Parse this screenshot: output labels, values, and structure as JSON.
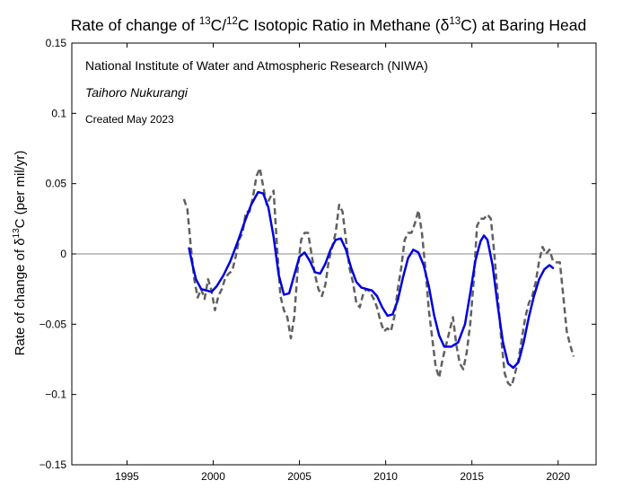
{
  "chart_data": {
    "type": "line",
    "title": {
      "prefix": "Rate of change of ",
      "sup1": "13",
      "mid1": "C/",
      "sup2": "12",
      "mid2": "C Isotopic Ratio in Methane (δ",
      "sup3": "13",
      "suffix": "C) at Baring Head"
    },
    "ylabel": {
      "prefix": "Rate of change of δ",
      "sup": "13",
      "suffix": "C (per mil/yr)"
    },
    "xlabel": "",
    "xlim": [
      1991.8,
      2022.2
    ],
    "ylim": [
      -0.15,
      0.15
    ],
    "x_ticks": [
      1995,
      2000,
      2005,
      2010,
      2015,
      2020
    ],
    "x_tick_labels": [
      "1995",
      "2000",
      "2005",
      "2010",
      "2015",
      "2020"
    ],
    "y_ticks": [
      -0.15,
      -0.1,
      -0.05,
      0,
      0.05,
      0.1,
      0.15
    ],
    "y_tick_labels": [
      "−0.15",
      "−0.1",
      "−0.05",
      "0",
      "0.05",
      "0.1",
      "0.15"
    ],
    "grid": false,
    "zero_line": true,
    "annotations": [
      {
        "text": "National Institute of Water and Atmospheric Research (NIWA)",
        "style": "normal"
      },
      {
        "text": "Taihoro Nukurangi",
        "style": "italic"
      },
      {
        "text": "Created May 2023",
        "style": "small"
      }
    ],
    "series": [
      {
        "style": "dashed",
        "color": "#606060",
        "points": [
          [
            1998.3,
            0.039
          ],
          [
            1998.5,
            0.032
          ],
          [
            1998.7,
            0.005
          ],
          [
            1998.9,
            -0.018
          ],
          [
            1999.1,
            -0.031
          ],
          [
            1999.3,
            -0.025
          ],
          [
            1999.5,
            -0.032
          ],
          [
            1999.7,
            -0.018
          ],
          [
            1999.9,
            -0.026
          ],
          [
            2000.1,
            -0.04
          ],
          [
            2000.3,
            -0.03
          ],
          [
            2000.5,
            -0.025
          ],
          [
            2000.7,
            -0.017
          ],
          [
            2000.9,
            -0.014
          ],
          [
            2001.1,
            -0.012
          ],
          [
            2001.3,
            -0.002
          ],
          [
            2001.5,
            0.01
          ],
          [
            2001.7,
            0.015
          ],
          [
            2001.9,
            0.03
          ],
          [
            2002.1,
            0.03
          ],
          [
            2002.3,
            0.04
          ],
          [
            2002.5,
            0.055
          ],
          [
            2002.7,
            0.061
          ],
          [
            2002.9,
            0.048
          ],
          [
            2003.1,
            0.035
          ],
          [
            2003.3,
            0.04
          ],
          [
            2003.5,
            0.045
          ],
          [
            2003.7,
            0.005
          ],
          [
            2003.9,
            -0.03
          ],
          [
            2004.1,
            -0.04
          ],
          [
            2004.3,
            -0.045
          ],
          [
            2004.5,
            -0.06
          ],
          [
            2004.7,
            -0.045
          ],
          [
            2004.9,
            -0.01
          ],
          [
            2005.1,
            0.01
          ],
          [
            2005.3,
            0.015
          ],
          [
            2005.5,
            0.015
          ],
          [
            2005.7,
            0.0
          ],
          [
            2005.9,
            -0.015
          ],
          [
            2006.1,
            -0.025
          ],
          [
            2006.3,
            -0.03
          ],
          [
            2006.5,
            -0.022
          ],
          [
            2006.7,
            -0.005
          ],
          [
            2006.9,
            0.005
          ],
          [
            2007.1,
            0.015
          ],
          [
            2007.3,
            0.035
          ],
          [
            2007.5,
            0.03
          ],
          [
            2007.7,
            0.01
          ],
          [
            2007.9,
            -0.01
          ],
          [
            2008.1,
            -0.02
          ],
          [
            2008.3,
            -0.035
          ],
          [
            2008.5,
            -0.038
          ],
          [
            2008.7,
            -0.028
          ],
          [
            2008.9,
            -0.025
          ],
          [
            2009.1,
            -0.027
          ],
          [
            2009.3,
            -0.032
          ],
          [
            2009.5,
            -0.038
          ],
          [
            2009.7,
            -0.048
          ],
          [
            2009.9,
            -0.055
          ],
          [
            2010.1,
            -0.053
          ],
          [
            2010.3,
            -0.055
          ],
          [
            2010.5,
            -0.045
          ],
          [
            2010.7,
            -0.025
          ],
          [
            2010.9,
            -0.01
          ],
          [
            2011.1,
            0.01
          ],
          [
            2011.3,
            0.015
          ],
          [
            2011.5,
            0.015
          ],
          [
            2011.7,
            0.022
          ],
          [
            2011.9,
            0.031
          ],
          [
            2012.1,
            0.015
          ],
          [
            2012.3,
            -0.01
          ],
          [
            2012.5,
            -0.04
          ],
          [
            2012.7,
            -0.06
          ],
          [
            2012.9,
            -0.08
          ],
          [
            2013.1,
            -0.088
          ],
          [
            2013.3,
            -0.075
          ],
          [
            2013.5,
            -0.065
          ],
          [
            2013.7,
            -0.055
          ],
          [
            2013.9,
            -0.045
          ],
          [
            2014.1,
            -0.065
          ],
          [
            2014.3,
            -0.078
          ],
          [
            2014.5,
            -0.082
          ],
          [
            2014.7,
            -0.07
          ],
          [
            2014.9,
            -0.05
          ],
          [
            2015.1,
            -0.02
          ],
          [
            2015.3,
            0.02
          ],
          [
            2015.5,
            0.025
          ],
          [
            2015.7,
            0.025
          ],
          [
            2015.9,
            0.028
          ],
          [
            2016.1,
            0.025
          ],
          [
            2016.3,
            0.0
          ],
          [
            2016.5,
            -0.03
          ],
          [
            2016.7,
            -0.06
          ],
          [
            2016.9,
            -0.085
          ],
          [
            2017.1,
            -0.092
          ],
          [
            2017.3,
            -0.094
          ],
          [
            2017.5,
            -0.085
          ],
          [
            2017.7,
            -0.075
          ],
          [
            2017.9,
            -0.06
          ],
          [
            2018.1,
            -0.045
          ],
          [
            2018.3,
            -0.035
          ],
          [
            2018.5,
            -0.03
          ],
          [
            2018.7,
            -0.02
          ],
          [
            2018.9,
            -0.005
          ],
          [
            2019.1,
            0.005
          ],
          [
            2019.3,
            0.0
          ],
          [
            2019.5,
            0.003
          ],
          [
            2019.7,
            -0.005
          ],
          [
            2019.9,
            -0.006
          ],
          [
            2020.1,
            -0.006
          ],
          [
            2020.3,
            -0.03
          ],
          [
            2020.5,
            -0.055
          ],
          [
            2020.7,
            -0.065
          ],
          [
            2020.9,
            -0.073
          ]
        ]
      },
      {
        "style": "solid",
        "color": "#0000dd",
        "points": [
          [
            1998.6,
            0.004
          ],
          [
            1998.8,
            -0.008
          ],
          [
            1999.0,
            -0.018
          ],
          [
            1999.3,
            -0.025
          ],
          [
            1999.6,
            -0.026
          ],
          [
            1999.9,
            -0.027
          ],
          [
            2000.2,
            -0.023
          ],
          [
            2000.6,
            -0.015
          ],
          [
            2001.0,
            -0.005
          ],
          [
            2001.4,
            0.008
          ],
          [
            2001.8,
            0.022
          ],
          [
            2002.2,
            0.035
          ],
          [
            2002.6,
            0.044
          ],
          [
            2002.9,
            0.043
          ],
          [
            2003.2,
            0.033
          ],
          [
            2003.5,
            0.012
          ],
          [
            2003.8,
            -0.015
          ],
          [
            2004.1,
            -0.029
          ],
          [
            2004.4,
            -0.028
          ],
          [
            2004.7,
            -0.015
          ],
          [
            2005.0,
            -0.002
          ],
          [
            2005.3,
            0.001
          ],
          [
            2005.6,
            -0.005
          ],
          [
            2005.9,
            -0.013
          ],
          [
            2006.2,
            -0.014
          ],
          [
            2006.5,
            -0.007
          ],
          [
            2006.8,
            0.003
          ],
          [
            2007.1,
            0.01
          ],
          [
            2007.4,
            0.011
          ],
          [
            2007.7,
            0.003
          ],
          [
            2008.0,
            -0.01
          ],
          [
            2008.3,
            -0.02
          ],
          [
            2008.6,
            -0.024
          ],
          [
            2008.9,
            -0.025
          ],
          [
            2009.2,
            -0.026
          ],
          [
            2009.5,
            -0.03
          ],
          [
            2009.8,
            -0.038
          ],
          [
            2010.1,
            -0.044
          ],
          [
            2010.4,
            -0.043
          ],
          [
            2010.7,
            -0.033
          ],
          [
            2011.0,
            -0.017
          ],
          [
            2011.3,
            -0.003
          ],
          [
            2011.6,
            0.003
          ],
          [
            2011.9,
            0.001
          ],
          [
            2012.2,
            -0.008
          ],
          [
            2012.5,
            -0.023
          ],
          [
            2012.8,
            -0.043
          ],
          [
            2013.1,
            -0.058
          ],
          [
            2013.4,
            -0.066
          ],
          [
            2013.8,
            -0.066
          ],
          [
            2014.2,
            -0.063
          ],
          [
            2014.6,
            -0.05
          ],
          [
            2014.9,
            -0.028
          ],
          [
            2015.2,
            -0.005
          ],
          [
            2015.5,
            0.009
          ],
          [
            2015.7,
            0.013
          ],
          [
            2015.9,
            0.01
          ],
          [
            2016.2,
            -0.008
          ],
          [
            2016.5,
            -0.037
          ],
          [
            2016.8,
            -0.063
          ],
          [
            2017.1,
            -0.078
          ],
          [
            2017.4,
            -0.081
          ],
          [
            2017.7,
            -0.077
          ],
          [
            2018.0,
            -0.063
          ],
          [
            2018.3,
            -0.045
          ],
          [
            2018.6,
            -0.03
          ],
          [
            2018.9,
            -0.018
          ],
          [
            2019.2,
            -0.011
          ],
          [
            2019.5,
            -0.008
          ],
          [
            2019.7,
            -0.01
          ]
        ]
      }
    ]
  }
}
